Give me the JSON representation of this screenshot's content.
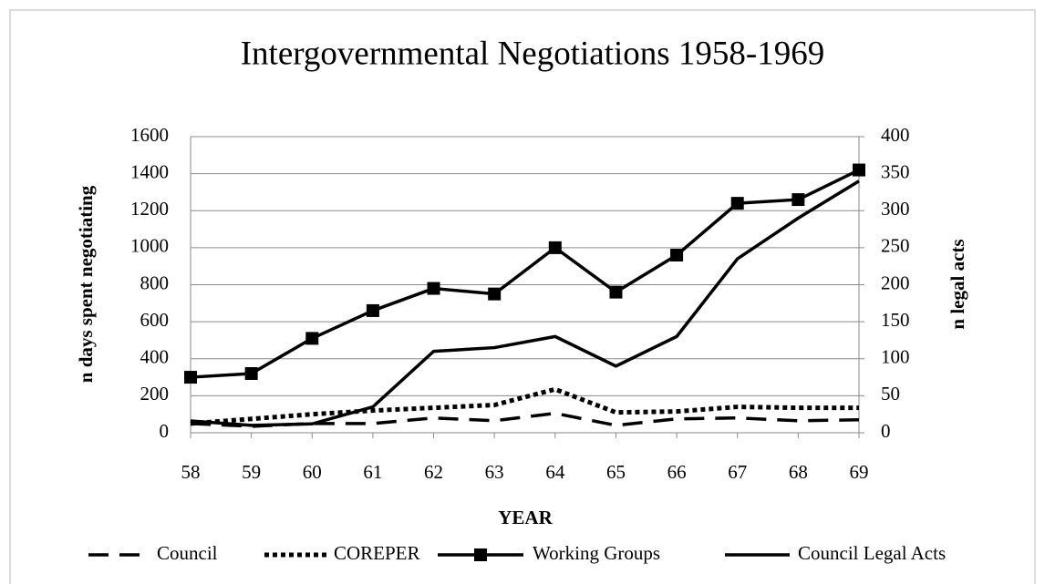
{
  "chart_data": {
    "type": "line",
    "title": "Intergovernmental Negotiations 1958-1969",
    "x_label": "YEAR",
    "y_label": "n days spent negotiating",
    "y2_label": "n legal acts",
    "categories": [
      "58",
      "59",
      "60",
      "61",
      "62",
      "63",
      "64",
      "65",
      "66",
      "67",
      "68",
      "69"
    ],
    "ylim": [
      0,
      1600
    ],
    "yticks": [
      0,
      200,
      400,
      600,
      800,
      1000,
      1200,
      1400,
      1600
    ],
    "y2lim": [
      0,
      400
    ],
    "y2ticks": [
      0,
      50,
      100,
      150,
      200,
      250,
      300,
      350,
      400
    ],
    "grid": true,
    "legend": "bottom",
    "series": [
      {
        "name": "Council",
        "color": "#000000",
        "style": "dashed",
        "values": [
          50,
          35,
          50,
          50,
          80,
          65,
          105,
          40,
          75,
          80,
          65,
          70
        ]
      },
      {
        "name": "COREPER",
        "color": "#000000",
        "style": "dotted",
        "values": [
          50,
          75,
          100,
          120,
          135,
          150,
          235,
          110,
          115,
          140,
          135,
          135
        ]
      },
      {
        "name": "Working Groups",
        "color": "#000000",
        "style": "solid",
        "marker": "square",
        "values": [
          300,
          320,
          510,
          660,
          780,
          750,
          1000,
          760,
          960,
          1240,
          1260,
          1420
        ]
      },
      {
        "name": "Council Legal Acts",
        "color": "#000000",
        "style": "solid",
        "axis": "y2",
        "values": [
          16,
          10,
          12,
          35,
          110,
          115,
          130,
          90,
          130,
          235,
          290,
          340
        ]
      }
    ]
  }
}
